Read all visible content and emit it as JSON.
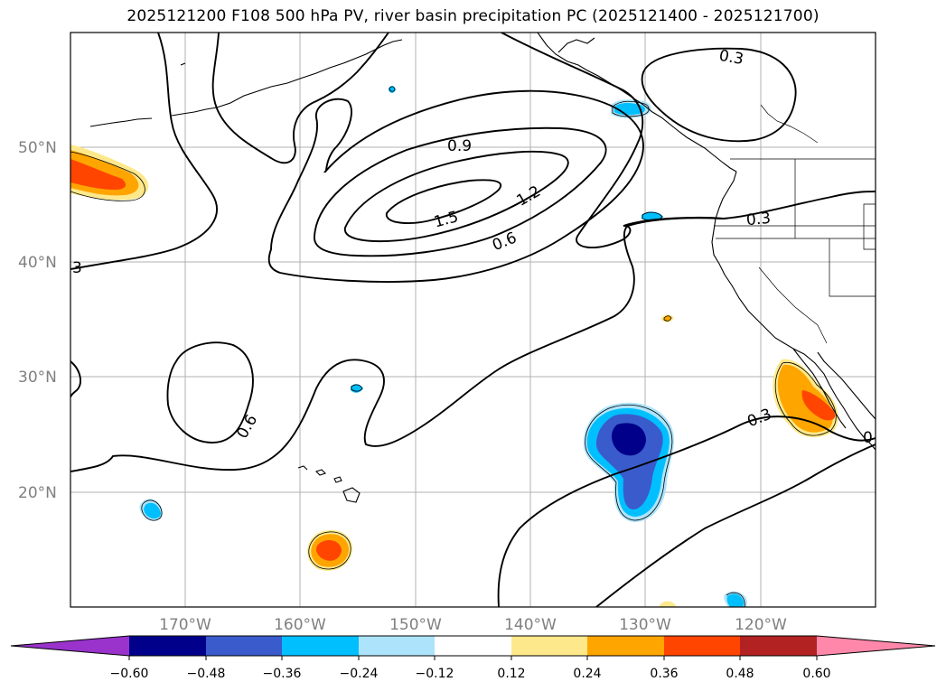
{
  "title": "2025121200 F108 500 hPa PV, river basin precipitation PC (2025121400 - 2025121700)",
  "map": {
    "lat_labels": [
      "50°N",
      "40°N",
      "30°N",
      "20°N"
    ],
    "lon_labels": [
      "170°W",
      "160°W",
      "150°W",
      "140°W",
      "130°W",
      "120°W"
    ],
    "contour_labels": [
      "0.3",
      "0.9",
      "1.2",
      "1.5",
      "0.6",
      "0.3",
      "3",
      "0.6",
      "0.3",
      "0"
    ]
  },
  "colorbar": {
    "ticks": [
      "−0.60",
      "−0.48",
      "−0.36",
      "−0.24",
      "−0.12",
      "0.12",
      "0.24",
      "0.36",
      "0.48",
      "0.60"
    ],
    "colors": {
      "under": "#9933cc",
      "c1": "#00008b",
      "c2": "#3a5bcc",
      "c3": "#00bfff",
      "c4": "#aee4fb",
      "c5": "#ffffff",
      "c6": "#fde98b",
      "c7": "#ffa500",
      "c8": "#ff4500",
      "c9": "#b22222",
      "over": "#ff88aa"
    }
  }
}
